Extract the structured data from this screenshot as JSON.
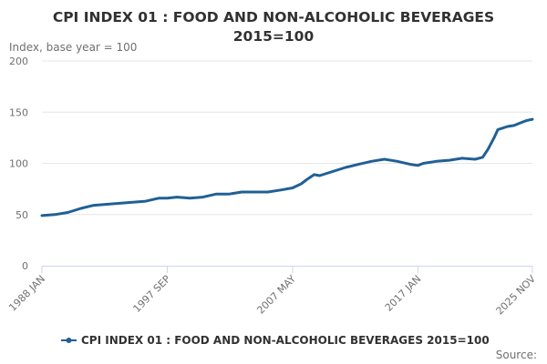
{
  "chart_data": {
    "type": "line",
    "title": "CPI INDEX 01 : FOOD AND NON-ALCOHOLIC BEVERAGES 2015=100",
    "ylabel": "Index, base year = 100",
    "xlabel": "",
    "ylim": [
      0,
      200
    ],
    "yticks": [
      "0",
      "50",
      "100",
      "150",
      "200"
    ],
    "xticks": [
      "1988 JAN",
      "1997 SEP",
      "2007 MAY",
      "2017 JAN",
      "2025 NOV"
    ],
    "grid": true,
    "legend": "bottom",
    "source_label": "Source:",
    "series": [
      {
        "name": "CPI INDEX 01 : FOOD AND NON-ALCOHOLIC BEVERAGES 2015=100",
        "color": "#206095",
        "x": [
          "1988-01",
          "1989-01",
          "1990-01",
          "1991-01",
          "1992-01",
          "1993-01",
          "1994-01",
          "1995-01",
          "1996-01",
          "1997-01",
          "1997-09",
          "1998-06",
          "1999-06",
          "2000-06",
          "2001-06",
          "2002-06",
          "2003-06",
          "2004-06",
          "2005-06",
          "2006-06",
          "2007-05",
          "2008-01",
          "2008-06",
          "2009-01",
          "2009-06",
          "2010-06",
          "2011-06",
          "2012-06",
          "2013-06",
          "2014-06",
          "2015-06",
          "2016-06",
          "2017-01",
          "2017-06",
          "2018-06",
          "2019-06",
          "2020-06",
          "2021-06",
          "2022-01",
          "2022-06",
          "2022-12",
          "2023-03",
          "2023-06",
          "2023-12",
          "2024-06",
          "2025-01",
          "2025-06",
          "2025-11"
        ],
        "values": [
          49,
          50,
          52,
          56,
          59,
          60,
          61,
          62,
          63,
          66,
          66,
          67,
          66,
          67,
          70,
          70,
          72,
          72,
          72,
          74,
          76,
          80,
          84,
          89,
          88,
          92,
          96,
          99,
          102,
          104,
          102,
          99,
          98,
          100,
          102,
          103,
          105,
          104,
          106,
          114,
          126,
          133,
          134,
          136,
          137,
          140,
          142,
          143
        ]
      }
    ]
  }
}
